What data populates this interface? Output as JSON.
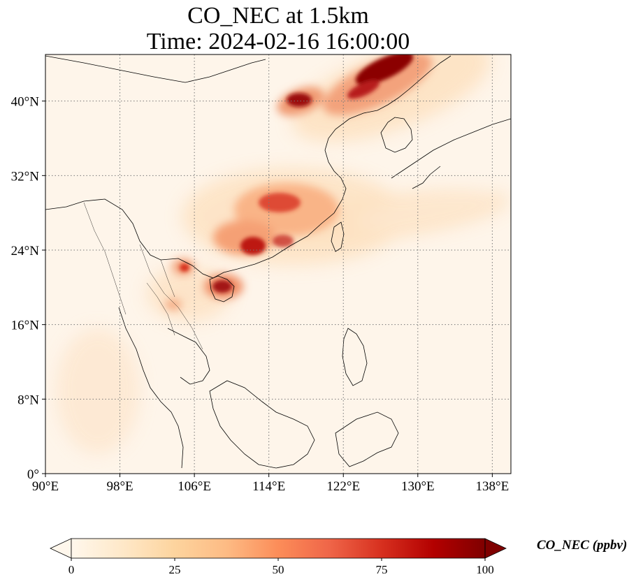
{
  "title": {
    "line1": "CO_NEC at 1.5km",
    "line2": "Time: 2024-02-16 16:00:00"
  },
  "map": {
    "projection": "PlateCarree",
    "lon_range": [
      90,
      140
    ],
    "lat_range": [
      0,
      45
    ],
    "lon_ticks": [
      {
        "value": 90,
        "label": "90°E"
      },
      {
        "value": 98,
        "label": "98°E"
      },
      {
        "value": 106,
        "label": "106°E"
      },
      {
        "value": 114,
        "label": "114°E"
      },
      {
        "value": 122,
        "label": "122°E"
      },
      {
        "value": 130,
        "label": "130°E"
      },
      {
        "value": 138,
        "label": "138°E"
      }
    ],
    "lat_ticks": [
      {
        "value": 0,
        "label": "0°"
      },
      {
        "value": 8,
        "label": "8°N"
      },
      {
        "value": 16,
        "label": "16°N"
      },
      {
        "value": 24,
        "label": "24°N"
      },
      {
        "value": 32,
        "label": "32°N"
      },
      {
        "value": 40,
        "label": "40°N"
      }
    ],
    "gridlines": "dotted",
    "colormap": "OrRd"
  },
  "colorbar": {
    "label": "CO_NEC (ppbv)",
    "range": [
      0,
      100
    ],
    "extend": "both",
    "ticks": [
      {
        "value": 0,
        "label": "0"
      },
      {
        "value": 25,
        "label": "25"
      },
      {
        "value": 50,
        "label": "50"
      },
      {
        "value": 75,
        "label": "75"
      },
      {
        "value": 100,
        "label": "100"
      }
    ],
    "colors": [
      "#fff7ec",
      "#fee8c8",
      "#fdd49e",
      "#fdbb84",
      "#fc8d59",
      "#ef6548",
      "#d7301f",
      "#b30000",
      "#7f0000"
    ]
  }
}
